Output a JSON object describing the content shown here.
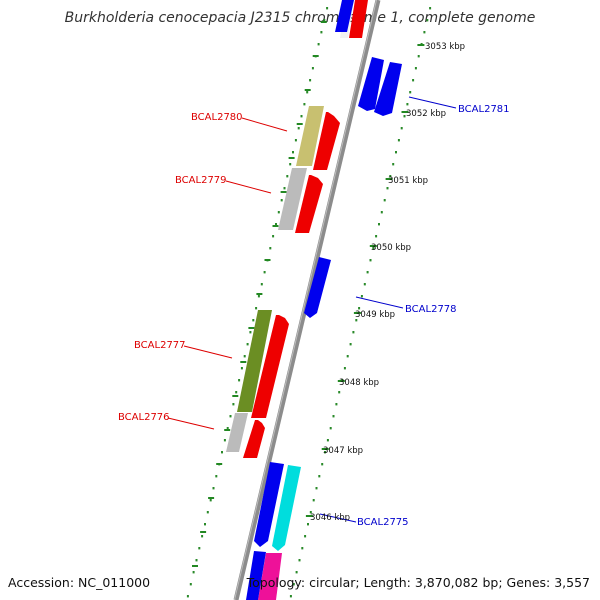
{
  "title": "Burkholderia cenocepacia J2315 chromosome 1, complete genome",
  "accession": "Accession: NC_011000",
  "summary": "Topology: circular; Length: 3,870,082 bp; Genes: 3,557",
  "colors": {
    "backbone": "#888888",
    "ticks": "#228822",
    "dots": "#2a8a2a",
    "label_left": "#dd0000",
    "label_right": "#0000cc"
  },
  "kbp_ticks": [
    {
      "label": "3053 kbp"
    },
    {
      "label": "3052 kbp"
    },
    {
      "label": "3051 kbp"
    },
    {
      "label": "3050 kbp"
    },
    {
      "label": "3049 kbp"
    },
    {
      "label": "3048 kbp"
    },
    {
      "label": "3047 kbp"
    },
    {
      "label": "3046 kbp"
    }
  ],
  "gene_labels": {
    "left": [
      "BCAL2780",
      "BCAL2779",
      "BCAL2777",
      "BCAL2776"
    ],
    "right": [
      "BCAL2781",
      "BCAL2778",
      "BCAL2775"
    ]
  }
}
